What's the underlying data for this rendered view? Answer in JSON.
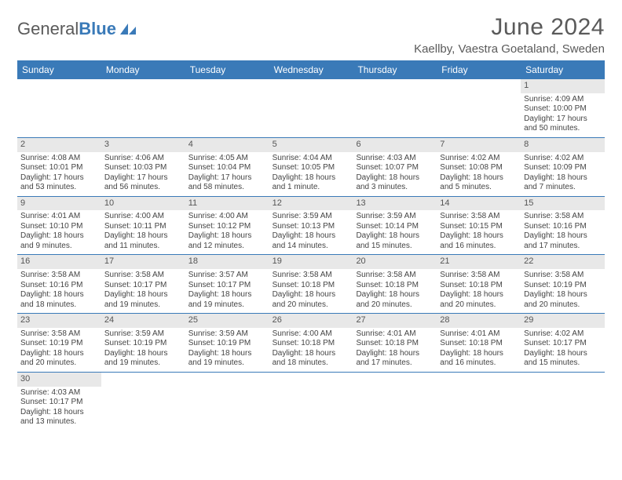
{
  "logo": {
    "text1": "General",
    "text2": "Blue"
  },
  "title": "June 2024",
  "location": "Kaellby, Vaestra Goetaland, Sweden",
  "colors": {
    "header_bg": "#3a7ab8",
    "header_text": "#ffffff",
    "daynum_bg": "#e8e8e8",
    "text": "#444444",
    "border": "#3a7ab8"
  },
  "weekdays": [
    "Sunday",
    "Monday",
    "Tuesday",
    "Wednesday",
    "Thursday",
    "Friday",
    "Saturday"
  ],
  "weeks": [
    [
      {
        "n": "",
        "sr": "",
        "ss": "",
        "dl": ""
      },
      {
        "n": "",
        "sr": "",
        "ss": "",
        "dl": ""
      },
      {
        "n": "",
        "sr": "",
        "ss": "",
        "dl": ""
      },
      {
        "n": "",
        "sr": "",
        "ss": "",
        "dl": ""
      },
      {
        "n": "",
        "sr": "",
        "ss": "",
        "dl": ""
      },
      {
        "n": "",
        "sr": "",
        "ss": "",
        "dl": ""
      },
      {
        "n": "1",
        "sr": "Sunrise: 4:09 AM",
        "ss": "Sunset: 10:00 PM",
        "dl": "Daylight: 17 hours and 50 minutes."
      }
    ],
    [
      {
        "n": "2",
        "sr": "Sunrise: 4:08 AM",
        "ss": "Sunset: 10:01 PM",
        "dl": "Daylight: 17 hours and 53 minutes."
      },
      {
        "n": "3",
        "sr": "Sunrise: 4:06 AM",
        "ss": "Sunset: 10:03 PM",
        "dl": "Daylight: 17 hours and 56 minutes."
      },
      {
        "n": "4",
        "sr": "Sunrise: 4:05 AM",
        "ss": "Sunset: 10:04 PM",
        "dl": "Daylight: 17 hours and 58 minutes."
      },
      {
        "n": "5",
        "sr": "Sunrise: 4:04 AM",
        "ss": "Sunset: 10:05 PM",
        "dl": "Daylight: 18 hours and 1 minute."
      },
      {
        "n": "6",
        "sr": "Sunrise: 4:03 AM",
        "ss": "Sunset: 10:07 PM",
        "dl": "Daylight: 18 hours and 3 minutes."
      },
      {
        "n": "7",
        "sr": "Sunrise: 4:02 AM",
        "ss": "Sunset: 10:08 PM",
        "dl": "Daylight: 18 hours and 5 minutes."
      },
      {
        "n": "8",
        "sr": "Sunrise: 4:02 AM",
        "ss": "Sunset: 10:09 PM",
        "dl": "Daylight: 18 hours and 7 minutes."
      }
    ],
    [
      {
        "n": "9",
        "sr": "Sunrise: 4:01 AM",
        "ss": "Sunset: 10:10 PM",
        "dl": "Daylight: 18 hours and 9 minutes."
      },
      {
        "n": "10",
        "sr": "Sunrise: 4:00 AM",
        "ss": "Sunset: 10:11 PM",
        "dl": "Daylight: 18 hours and 11 minutes."
      },
      {
        "n": "11",
        "sr": "Sunrise: 4:00 AM",
        "ss": "Sunset: 10:12 PM",
        "dl": "Daylight: 18 hours and 12 minutes."
      },
      {
        "n": "12",
        "sr": "Sunrise: 3:59 AM",
        "ss": "Sunset: 10:13 PM",
        "dl": "Daylight: 18 hours and 14 minutes."
      },
      {
        "n": "13",
        "sr": "Sunrise: 3:59 AM",
        "ss": "Sunset: 10:14 PM",
        "dl": "Daylight: 18 hours and 15 minutes."
      },
      {
        "n": "14",
        "sr": "Sunrise: 3:58 AM",
        "ss": "Sunset: 10:15 PM",
        "dl": "Daylight: 18 hours and 16 minutes."
      },
      {
        "n": "15",
        "sr": "Sunrise: 3:58 AM",
        "ss": "Sunset: 10:16 PM",
        "dl": "Daylight: 18 hours and 17 minutes."
      }
    ],
    [
      {
        "n": "16",
        "sr": "Sunrise: 3:58 AM",
        "ss": "Sunset: 10:16 PM",
        "dl": "Daylight: 18 hours and 18 minutes."
      },
      {
        "n": "17",
        "sr": "Sunrise: 3:58 AM",
        "ss": "Sunset: 10:17 PM",
        "dl": "Daylight: 18 hours and 19 minutes."
      },
      {
        "n": "18",
        "sr": "Sunrise: 3:57 AM",
        "ss": "Sunset: 10:17 PM",
        "dl": "Daylight: 18 hours and 19 minutes."
      },
      {
        "n": "19",
        "sr": "Sunrise: 3:58 AM",
        "ss": "Sunset: 10:18 PM",
        "dl": "Daylight: 18 hours and 20 minutes."
      },
      {
        "n": "20",
        "sr": "Sunrise: 3:58 AM",
        "ss": "Sunset: 10:18 PM",
        "dl": "Daylight: 18 hours and 20 minutes."
      },
      {
        "n": "21",
        "sr": "Sunrise: 3:58 AM",
        "ss": "Sunset: 10:18 PM",
        "dl": "Daylight: 18 hours and 20 minutes."
      },
      {
        "n": "22",
        "sr": "Sunrise: 3:58 AM",
        "ss": "Sunset: 10:19 PM",
        "dl": "Daylight: 18 hours and 20 minutes."
      }
    ],
    [
      {
        "n": "23",
        "sr": "Sunrise: 3:58 AM",
        "ss": "Sunset: 10:19 PM",
        "dl": "Daylight: 18 hours and 20 minutes."
      },
      {
        "n": "24",
        "sr": "Sunrise: 3:59 AM",
        "ss": "Sunset: 10:19 PM",
        "dl": "Daylight: 18 hours and 19 minutes."
      },
      {
        "n": "25",
        "sr": "Sunrise: 3:59 AM",
        "ss": "Sunset: 10:19 PM",
        "dl": "Daylight: 18 hours and 19 minutes."
      },
      {
        "n": "26",
        "sr": "Sunrise: 4:00 AM",
        "ss": "Sunset: 10:18 PM",
        "dl": "Daylight: 18 hours and 18 minutes."
      },
      {
        "n": "27",
        "sr": "Sunrise: 4:01 AM",
        "ss": "Sunset: 10:18 PM",
        "dl": "Daylight: 18 hours and 17 minutes."
      },
      {
        "n": "28",
        "sr": "Sunrise: 4:01 AM",
        "ss": "Sunset: 10:18 PM",
        "dl": "Daylight: 18 hours and 16 minutes."
      },
      {
        "n": "29",
        "sr": "Sunrise: 4:02 AM",
        "ss": "Sunset: 10:17 PM",
        "dl": "Daylight: 18 hours and 15 minutes."
      }
    ],
    [
      {
        "n": "30",
        "sr": "Sunrise: 4:03 AM",
        "ss": "Sunset: 10:17 PM",
        "dl": "Daylight: 18 hours and 13 minutes."
      },
      {
        "n": "",
        "sr": "",
        "ss": "",
        "dl": ""
      },
      {
        "n": "",
        "sr": "",
        "ss": "",
        "dl": ""
      },
      {
        "n": "",
        "sr": "",
        "ss": "",
        "dl": ""
      },
      {
        "n": "",
        "sr": "",
        "ss": "",
        "dl": ""
      },
      {
        "n": "",
        "sr": "",
        "ss": "",
        "dl": ""
      },
      {
        "n": "",
        "sr": "",
        "ss": "",
        "dl": ""
      }
    ]
  ]
}
